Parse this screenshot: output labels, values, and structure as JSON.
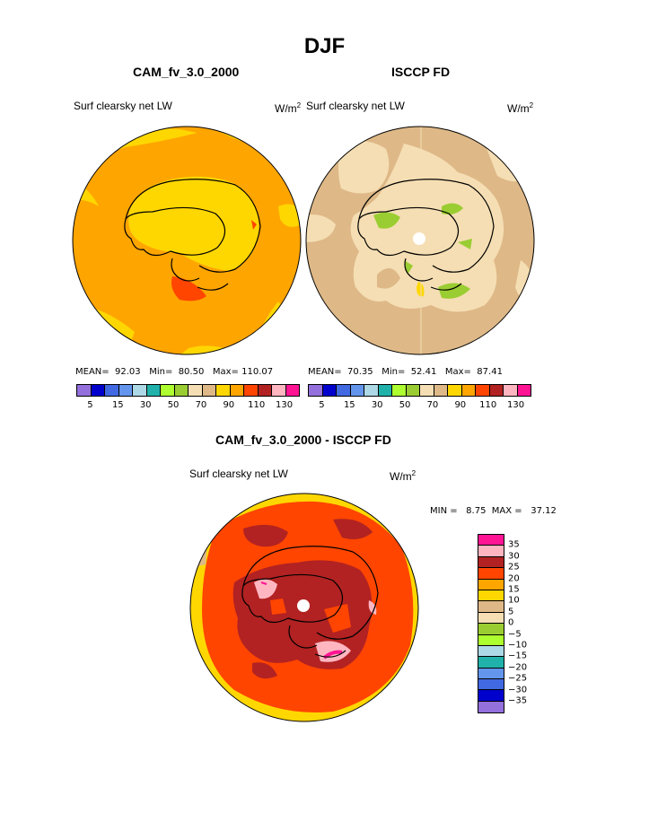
{
  "title": "DJF",
  "panels": [
    {
      "title": "CAM_fv_3.0_2000",
      "field": "Surf clearsky net LW",
      "units": "W/m",
      "units_sup": "2",
      "mean": "92.03",
      "min": "80.50",
      "max": "110.07"
    },
    {
      "title": "ISCCP FD",
      "field": "Surf clearsky net LW",
      "units": "W/m",
      "units_sup": "2",
      "mean": "70.35",
      "min": "52.41",
      "max": "87.41"
    }
  ],
  "stat_labels": {
    "mean": "MEAN=",
    "min": "Min=",
    "max": "Max=",
    "min_diff": "MIN =",
    "max_diff": "MAX ="
  },
  "diff": {
    "title": "CAM_fv_3.0_2000 - ISCCP FD",
    "field": "Surf clearsky net LW",
    "units": "W/m",
    "units_sup": "2",
    "min": "8.75",
    "max": "37.12"
  },
  "colorbar_top": {
    "colors": [
      "#9370db",
      "#0000cd",
      "#4169e1",
      "#6495ed",
      "#add8e6",
      "#20b2aa",
      "#adff2f",
      "#9acd32",
      "#f5deb3",
      "#deb887",
      "#ffd700",
      "#ffa500",
      "#ff4500",
      "#b22222",
      "#ffb6c1",
      "#ff1493"
    ],
    "ticks": [
      "5",
      "15",
      "30",
      "50",
      "70",
      "90",
      "110",
      "130"
    ]
  },
  "colorbar_diff": {
    "colors": [
      "#ff1493",
      "#ffb6c1",
      "#b22222",
      "#ff4500",
      "#ffa500",
      "#ffd700",
      "#deb887",
      "#f5deb3",
      "#9acd32",
      "#adff2f",
      "#add8e6",
      "#20b2aa",
      "#6495ed",
      "#4169e1",
      "#0000cd",
      "#9370db"
    ],
    "ticks": [
      "35",
      "30",
      "25",
      "20",
      "15",
      "10",
      "5",
      "0",
      "−5",
      "−10",
      "−15",
      "−20",
      "−25",
      "−30",
      "−35"
    ]
  }
}
